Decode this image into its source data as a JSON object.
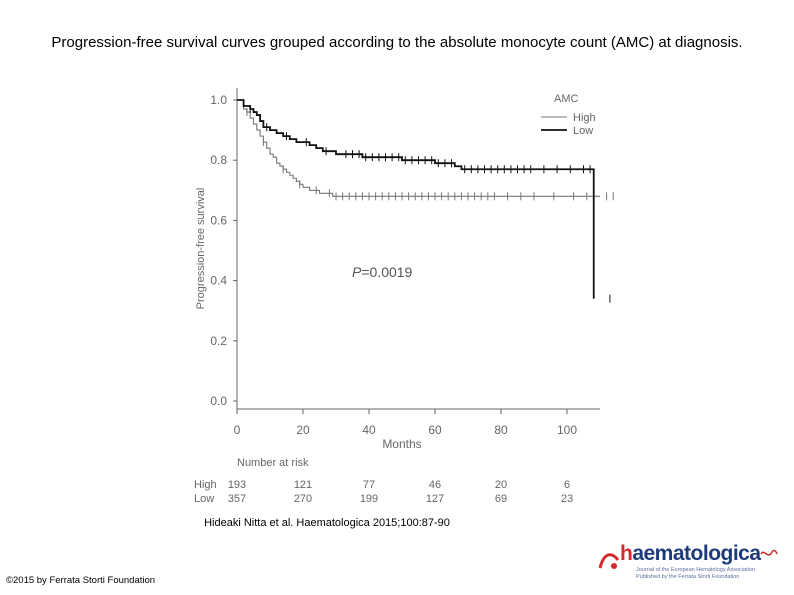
{
  "slide": {
    "title": "Progression-free survival curves grouped according to the absolute monocyte count (AMC) at diagnosis.",
    "citation": "Hideaki Nitta et al. Haematologica 2015;100:87-90",
    "copyright": "©2015 by Ferrata Storti Foundation",
    "logo": {
      "text_h": "h",
      "text_rest": "aematologica",
      "tagline1": "Journal of the European Hematology Association",
      "tagline2": "Published by the Ferrata Storti Foundation"
    }
  },
  "chart_data": {
    "type": "line",
    "xlabel": "Months",
    "ylabel": "Progression-free survival",
    "xlim": [
      0,
      110
    ],
    "ylim": [
      0,
      1.0
    ],
    "x_ticks": [
      0,
      20,
      40,
      60,
      80,
      100
    ],
    "y_ticks": [
      "0.0",
      "0.2",
      "0.4",
      "0.6",
      "0.8",
      "1.0"
    ],
    "legend_title": "AMC",
    "legend_position": "top-right",
    "annotation": {
      "prefix": "P",
      "text": "=0.0019"
    },
    "series": [
      {
        "name": "High",
        "color": "#777777",
        "x": [
          0,
          2,
          3,
          4,
          5,
          6,
          7,
          8,
          9,
          10,
          11,
          12,
          13,
          14,
          15,
          16,
          17,
          18,
          19,
          20,
          21,
          22,
          23,
          25,
          27,
          29,
          31,
          33,
          36,
          110
        ],
        "y": [
          1.0,
          0.97,
          0.96,
          0.94,
          0.92,
          0.9,
          0.88,
          0.86,
          0.84,
          0.82,
          0.81,
          0.79,
          0.78,
          0.77,
          0.76,
          0.75,
          0.74,
          0.73,
          0.72,
          0.71,
          0.71,
          0.7,
          0.7,
          0.69,
          0.69,
          0.68,
          0.68,
          0.68,
          0.68,
          0.68
        ]
      },
      {
        "name": "Low",
        "color": "#111111",
        "x": [
          0,
          2,
          4,
          5,
          6,
          7,
          8,
          10,
          12,
          14,
          16,
          18,
          20,
          22,
          24,
          26,
          28,
          30,
          35,
          38,
          45,
          50,
          60,
          66,
          68,
          90,
          108,
          108.1
        ],
        "y": [
          1.0,
          0.98,
          0.97,
          0.96,
          0.95,
          0.93,
          0.91,
          0.9,
          0.89,
          0.88,
          0.87,
          0.86,
          0.86,
          0.85,
          0.84,
          0.83,
          0.83,
          0.82,
          0.82,
          0.81,
          0.81,
          0.8,
          0.79,
          0.78,
          0.77,
          0.77,
          0.77,
          0.34
        ]
      }
    ],
    "censor_marks": {
      "High": [
        3,
        8,
        14,
        19,
        24,
        28,
        30,
        32,
        34,
        36,
        38,
        40,
        42,
        44,
        46,
        48,
        50,
        52,
        54,
        56,
        58,
        60,
        62,
        64,
        66,
        68,
        70,
        72,
        74,
        76,
        78,
        82,
        86,
        90,
        96,
        102,
        106,
        112,
        114
      ],
      "Low": [
        4,
        9,
        15,
        21,
        27,
        33,
        35,
        37,
        39,
        41,
        43,
        45,
        47,
        49,
        51,
        53,
        55,
        57,
        59,
        61,
        63,
        65,
        69,
        71,
        73,
        75,
        77,
        79,
        81,
        83,
        85,
        87,
        89,
        93,
        97,
        101,
        105,
        107,
        113
      ]
    },
    "risk_table": {
      "title": "Number at risk",
      "rows": [
        {
          "label": "High",
          "values": [
            "193",
            "121",
            "77",
            "46",
            "20",
            "6"
          ]
        },
        {
          "label": "Low",
          "values": [
            "357",
            "270",
            "199",
            "127",
            "69",
            "23"
          ]
        }
      ]
    }
  }
}
